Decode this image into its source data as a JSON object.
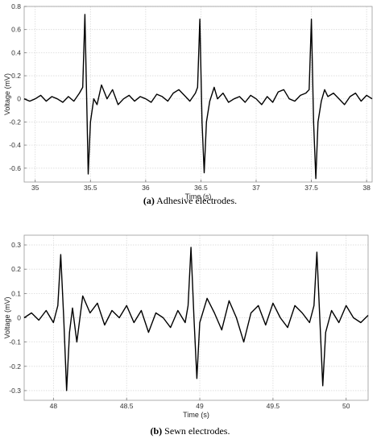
{
  "chart_data": [
    {
      "type": "line",
      "xlabel": "Time (s)",
      "ylabel": "Voltage (mV)",
      "xlim": [
        34.9,
        38.05
      ],
      "ylim": [
        -0.72,
        0.8
      ],
      "xticks": [
        35,
        35.5,
        36,
        36.5,
        37,
        37.5,
        38
      ],
      "xtick_labels": [
        "35",
        "35.5",
        "36",
        "36.5",
        "37",
        "37.5",
        "38"
      ],
      "yticks": [
        -0.6,
        -0.4,
        -0.2,
        0,
        0.2,
        0.4,
        0.6,
        0.8
      ],
      "ytick_labels": [
        "-0.6",
        "-0.4",
        "-0.2",
        "0",
        "0.2",
        "0.4",
        "0.6",
        "0.8"
      ],
      "grid": true,
      "caption_bold": "(a)",
      "caption_text": " Adhesive electrodes.",
      "series": [
        {
          "x": [
            34.9,
            34.95,
            35.0,
            35.05,
            35.1,
            35.15,
            35.2,
            35.25,
            35.3,
            35.35,
            35.4,
            35.43,
            35.45,
            35.47,
            35.48,
            35.5,
            35.53,
            35.56,
            35.6,
            35.65,
            35.7,
            35.75,
            35.8,
            35.85,
            35.9,
            35.95,
            36.0,
            36.05,
            36.1,
            36.15,
            36.2,
            36.25,
            36.3,
            36.35,
            36.4,
            36.45,
            36.47,
            36.49,
            36.51,
            36.53,
            36.55,
            36.58,
            36.62,
            36.65,
            36.7,
            36.75,
            36.8,
            36.85,
            36.9,
            36.95,
            37.0,
            37.05,
            37.1,
            37.15,
            37.2,
            37.25,
            37.3,
            37.35,
            37.4,
            37.45,
            37.48,
            37.5,
            37.52,
            37.54,
            37.56,
            37.59,
            37.62,
            37.65,
            37.7,
            37.75,
            37.8,
            37.85,
            37.9,
            37.95,
            38.0,
            38.05
          ],
          "y": [
            0.0,
            -0.02,
            0.0,
            0.03,
            -0.02,
            0.02,
            0.0,
            -0.03,
            0.02,
            -0.02,
            0.05,
            0.1,
            0.73,
            -0.2,
            -0.65,
            -0.2,
            0.0,
            -0.05,
            0.12,
            0.0,
            0.08,
            -0.05,
            0.0,
            0.03,
            -0.02,
            0.02,
            0.0,
            -0.03,
            0.04,
            0.02,
            -0.02,
            0.05,
            0.08,
            0.03,
            -0.02,
            0.05,
            0.1,
            0.69,
            -0.2,
            -0.64,
            -0.2,
            -0.02,
            0.1,
            0.0,
            0.05,
            -0.03,
            0.0,
            0.02,
            -0.03,
            0.03,
            0.0,
            -0.05,
            0.02,
            -0.03,
            0.06,
            0.08,
            0.0,
            -0.02,
            0.03,
            0.05,
            0.08,
            0.69,
            -0.2,
            -0.69,
            -0.2,
            -0.02,
            0.08,
            0.02,
            0.05,
            0.0,
            -0.05,
            0.02,
            0.05,
            -0.02,
            0.03,
            0.0
          ]
        }
      ]
    },
    {
      "type": "line",
      "xlabel": "Time (s)",
      "ylabel": "Voltage (mV)",
      "xlim": [
        47.8,
        50.15
      ],
      "ylim": [
        -0.34,
        0.34
      ],
      "xticks": [
        48,
        48.5,
        49,
        49.5,
        50
      ],
      "xtick_labels": [
        "48",
        "48.5",
        "49",
        "49.5",
        "50"
      ],
      "yticks": [
        -0.3,
        -0.2,
        -0.1,
        0,
        0.1,
        0.2,
        0.3
      ],
      "ytick_labels": [
        "-0.3",
        "-0.2",
        "-0.1",
        "0",
        "0.1",
        "0.2",
        "0.3"
      ],
      "grid": true,
      "caption_bold": "(b)",
      "caption_text": " Sewn electrodes.",
      "series": [
        {
          "x": [
            47.8,
            47.85,
            47.9,
            47.95,
            48.0,
            48.03,
            48.05,
            48.07,
            48.09,
            48.11,
            48.13,
            48.16,
            48.2,
            48.25,
            48.3,
            48.35,
            48.4,
            48.45,
            48.5,
            48.55,
            48.6,
            48.65,
            48.7,
            48.75,
            48.8,
            48.85,
            48.9,
            48.92,
            48.94,
            48.96,
            48.98,
            49.0,
            49.05,
            49.1,
            49.15,
            49.2,
            49.25,
            49.3,
            49.35,
            49.4,
            49.45,
            49.5,
            49.55,
            49.6,
            49.65,
            49.7,
            49.75,
            49.78,
            49.8,
            49.82,
            49.84,
            49.86,
            49.9,
            49.95,
            50.0,
            50.05,
            50.1,
            50.15
          ],
          "y": [
            0.0,
            0.02,
            -0.01,
            0.03,
            -0.02,
            0.05,
            0.26,
            0.0,
            -0.3,
            -0.06,
            0.04,
            -0.1,
            0.09,
            0.02,
            0.06,
            -0.03,
            0.03,
            0.0,
            0.05,
            -0.02,
            0.03,
            -0.06,
            0.02,
            0.0,
            -0.04,
            0.03,
            -0.02,
            0.05,
            0.29,
            0.0,
            -0.25,
            -0.02,
            0.08,
            0.02,
            -0.05,
            0.07,
            0.0,
            -0.1,
            0.02,
            0.05,
            -0.03,
            0.06,
            0.0,
            -0.04,
            0.05,
            0.02,
            -0.02,
            0.05,
            0.27,
            0.0,
            -0.28,
            -0.06,
            0.03,
            -0.02,
            0.05,
            0.0,
            -0.02,
            0.01
          ]
        }
      ]
    }
  ]
}
